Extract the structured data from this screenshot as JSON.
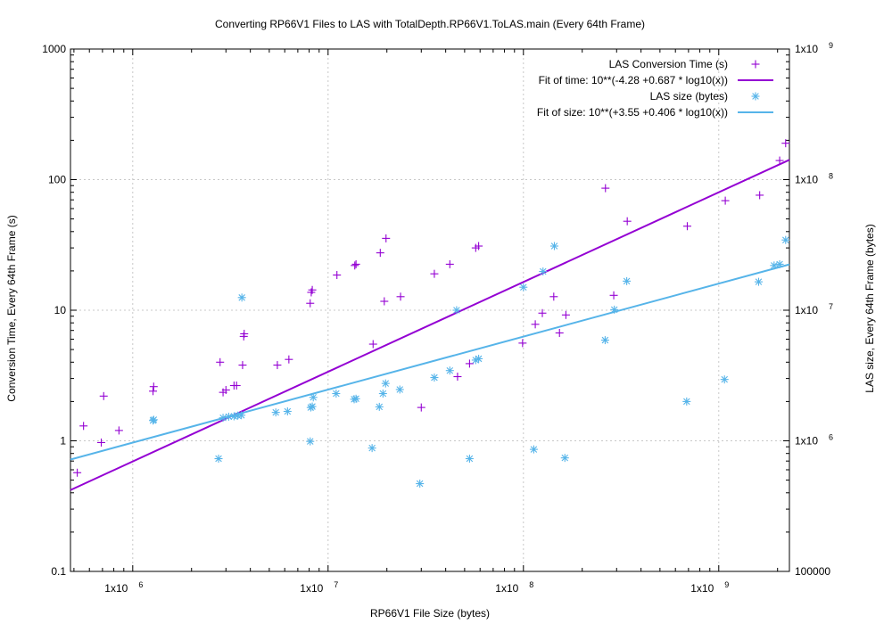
{
  "chart_data": {
    "type": "scatter",
    "title": "Converting RP66V1 Files to LAS with TotalDepth.RP66V1.ToLAS.main (Every 64th Frame)",
    "xlabel": "RP66V1 File Size (bytes)",
    "ylabel": "Conversion Time, Every 64th Frame (s)",
    "y2label": "LAS size, Every 64th Frame (bytes)",
    "x_scale": "log",
    "y_scale": "log",
    "y2_scale": "log",
    "xlim": [
      480000,
      2300000000
    ],
    "ylim": [
      0.1,
      1000
    ],
    "y2lim": [
      100000,
      1000000000
    ],
    "grid": true,
    "legend_position": "top-right",
    "x_ticks": [
      {
        "value": 1000000,
        "base": "1x10",
        "exp": "6"
      },
      {
        "value": 10000000,
        "base": "1x10",
        "exp": "7"
      },
      {
        "value": 100000000,
        "base": "1x10",
        "exp": "8"
      },
      {
        "value": 1000000000,
        "base": "1x10",
        "exp": "9"
      }
    ],
    "y_ticks": [
      {
        "value": 0.1,
        "label": "0.1"
      },
      {
        "value": 1,
        "label": "1"
      },
      {
        "value": 10,
        "label": "10"
      },
      {
        "value": 100,
        "label": "100"
      },
      {
        "value": 1000,
        "label": "1000"
      }
    ],
    "y2_ticks": [
      {
        "value": 100000,
        "label": "100000",
        "base": "",
        "exp": ""
      },
      {
        "value": 1000000,
        "label": "",
        "base": "1x10",
        "exp": "6"
      },
      {
        "value": 10000000,
        "label": "",
        "base": "1x10",
        "exp": "7"
      },
      {
        "value": 100000000,
        "label": "",
        "base": "1x10",
        "exp": "8"
      },
      {
        "value": 1000000000,
        "label": "",
        "base": "1x10",
        "exp": "9"
      }
    ],
    "series": [
      {
        "name": "LAS Conversion Time (s)",
        "kind": "points",
        "marker": "plus",
        "axis": "y",
        "color": "#9400d3",
        "points": [
          [
            520000,
            0.57
          ],
          [
            560000,
            1.3
          ],
          [
            690000,
            0.97
          ],
          [
            710000,
            2.2
          ],
          [
            850000,
            1.2
          ],
          [
            1270000,
            2.4
          ],
          [
            1280000,
            2.6
          ],
          [
            2800000,
            4.0
          ],
          [
            2900000,
            2.35
          ],
          [
            3000000,
            2.45
          ],
          [
            3300000,
            2.65
          ],
          [
            3400000,
            2.65
          ],
          [
            3650000,
            3.8
          ],
          [
            3700000,
            6.3
          ],
          [
            3720000,
            6.6
          ],
          [
            5500000,
            3.8
          ],
          [
            6300000,
            4.2
          ],
          [
            8100000,
            11.3
          ],
          [
            8200000,
            13.7
          ],
          [
            8300000,
            14.3
          ],
          [
            11100000,
            18.6
          ],
          [
            13700000,
            22.0
          ],
          [
            13900000,
            22.5
          ],
          [
            17000000,
            5.5
          ],
          [
            18500000,
            27.5
          ],
          [
            19400000,
            11.7
          ],
          [
            19800000,
            35.5
          ],
          [
            23500000,
            12.7
          ],
          [
            30000000,
            1.8
          ],
          [
            35000000,
            19.0
          ],
          [
            42000000,
            22.5
          ],
          [
            46000000,
            3.1
          ],
          [
            53000000,
            3.9
          ],
          [
            57000000,
            30.0
          ],
          [
            59000000,
            31.0
          ],
          [
            99000000,
            5.6
          ],
          [
            115000000,
            7.8
          ],
          [
            125000000,
            9.5
          ],
          [
            143000000,
            12.7
          ],
          [
            153000000,
            6.7
          ],
          [
            165000000,
            9.2
          ],
          [
            263000000,
            86.0
          ],
          [
            290000000,
            13.0
          ],
          [
            340000000,
            48.0
          ],
          [
            690000000,
            44.0
          ],
          [
            1080000000,
            69.0
          ],
          [
            1620000000,
            76.0
          ],
          [
            2050000000,
            140.0
          ],
          [
            2200000000,
            190.0
          ]
        ]
      },
      {
        "name": "Fit of time: 10**(-4.28 +0.687 * log10(x))",
        "kind": "line",
        "axis": "y",
        "color": "#9400d3",
        "intercept": -4.28,
        "slope": 0.687
      },
      {
        "name": "LAS size (bytes)",
        "kind": "points",
        "marker": "asterisk",
        "axis": "y2",
        "color": "#56b4e9",
        "points": [
          [
            1270000,
            1430000
          ],
          [
            1280000,
            1450000
          ],
          [
            2750000,
            730000
          ],
          [
            2900000,
            1500000
          ],
          [
            3100000,
            1530000
          ],
          [
            3300000,
            1540000
          ],
          [
            3450000,
            1560000
          ],
          [
            3600000,
            1570000
          ],
          [
            3620000,
            12500000
          ],
          [
            5400000,
            1650000
          ],
          [
            6200000,
            1680000
          ],
          [
            8100000,
            990000
          ],
          [
            8150000,
            1800000
          ],
          [
            8300000,
            1830000
          ],
          [
            8400000,
            2150000
          ],
          [
            11000000,
            2300000
          ],
          [
            13600000,
            2080000
          ],
          [
            13900000,
            2100000
          ],
          [
            16800000,
            880000
          ],
          [
            18300000,
            1820000
          ],
          [
            19100000,
            2300000
          ],
          [
            19700000,
            2750000
          ],
          [
            23300000,
            2470000
          ],
          [
            29500000,
            470000
          ],
          [
            35000000,
            3050000
          ],
          [
            42000000,
            3450000
          ],
          [
            45500000,
            10000000
          ],
          [
            53000000,
            730000
          ],
          [
            57000000,
            4150000
          ],
          [
            59000000,
            4250000
          ],
          [
            100000000,
            15000000
          ],
          [
            113000000,
            860000
          ],
          [
            126000000,
            19800000
          ],
          [
            144000000,
            31000000
          ],
          [
            163000000,
            740000
          ],
          [
            262000000,
            5900000
          ],
          [
            292000000,
            10100000
          ],
          [
            338000000,
            16700000
          ],
          [
            685000000,
            2000000
          ],
          [
            1070000000,
            2950000
          ],
          [
            1600000000,
            16500000
          ],
          [
            1920000000,
            22000000
          ],
          [
            2050000000,
            22500000
          ],
          [
            2200000000,
            34500000
          ]
        ]
      },
      {
        "name": "Fit of size: 10**(+3.55 +0.406 * log10(x))",
        "kind": "line",
        "axis": "y2",
        "color": "#56b4e9",
        "intercept": 3.55,
        "slope": 0.406
      }
    ]
  }
}
